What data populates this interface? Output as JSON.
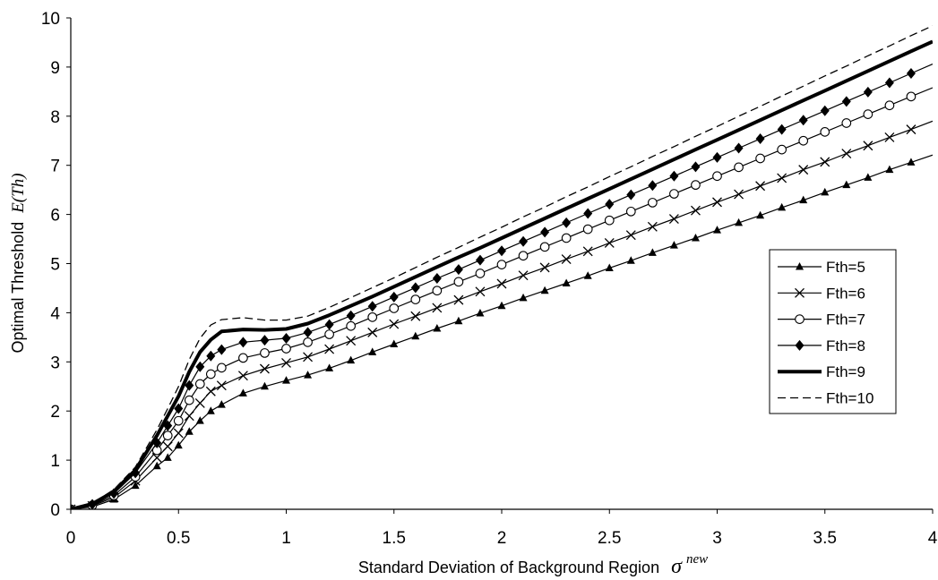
{
  "chart_data": {
    "type": "line",
    "title": "",
    "xlabel": "Standard Deviation of Background Region",
    "xlabel_symbol": "σ",
    "xlabel_superscript": "new",
    "ylabel": "Optimal Threshold",
    "ylabel_symbol": "E(Th)",
    "xlim": [
      0,
      4
    ],
    "ylim": [
      0,
      10
    ],
    "xticks": [
      "0",
      "0.5",
      "1",
      "1.5",
      "2",
      "2.5",
      "3",
      "3.5",
      "4"
    ],
    "yticks": [
      "0",
      "1",
      "2",
      "3",
      "4",
      "5",
      "6",
      "7",
      "8",
      "9",
      "10"
    ],
    "grid": false,
    "legend_position": "right",
    "x": [
      0,
      0.1,
      0.2,
      0.3,
      0.4,
      0.45,
      0.5,
      0.55,
      0.6,
      0.65,
      0.7,
      0.8,
      0.9,
      1.0,
      1.1,
      1.2,
      1.3,
      1.4,
      1.5,
      1.6,
      1.7,
      1.8,
      1.9,
      2.0,
      2.1,
      2.2,
      2.3,
      2.4,
      2.5,
      2.6,
      2.7,
      2.8,
      2.9,
      3.0,
      3.1,
      3.2,
      3.3,
      3.4,
      3.5,
      3.6,
      3.7,
      3.8,
      3.9,
      4.0
    ],
    "series": [
      {
        "name": "Fth=5",
        "marker": "triangle",
        "line": "thin",
        "values": [
          0,
          0.05,
          0.2,
          0.48,
          0.88,
          1.05,
          1.3,
          1.58,
          1.8,
          2.0,
          2.13,
          2.36,
          2.5,
          2.62,
          2.73,
          2.87,
          3.03,
          3.2,
          3.36,
          3.52,
          3.68,
          3.83,
          3.99,
          4.14,
          4.3,
          4.45,
          4.6,
          4.75,
          4.91,
          5.06,
          5.22,
          5.37,
          5.52,
          5.68,
          5.83,
          5.98,
          6.14,
          6.29,
          6.45,
          6.6,
          6.75,
          6.91,
          7.06,
          7.21
        ]
      },
      {
        "name": "Fth=6",
        "marker": "cross",
        "line": "thin",
        "values": [
          0,
          0.07,
          0.24,
          0.58,
          1.05,
          1.28,
          1.55,
          1.9,
          2.16,
          2.4,
          2.52,
          2.72,
          2.86,
          2.98,
          3.1,
          3.26,
          3.43,
          3.6,
          3.77,
          3.93,
          4.1,
          4.26,
          4.43,
          4.59,
          4.76,
          4.92,
          5.09,
          5.25,
          5.42,
          5.58,
          5.75,
          5.91,
          6.08,
          6.25,
          6.41,
          6.58,
          6.74,
          6.91,
          7.07,
          7.24,
          7.4,
          7.57,
          7.73,
          7.9
        ]
      },
      {
        "name": "Fth=7",
        "marker": "circle",
        "line": "thin",
        "values": [
          0,
          0.08,
          0.28,
          0.66,
          1.2,
          1.5,
          1.8,
          2.22,
          2.55,
          2.75,
          2.88,
          3.08,
          3.18,
          3.27,
          3.4,
          3.56,
          3.73,
          3.91,
          4.09,
          4.27,
          4.45,
          4.63,
          4.8,
          4.98,
          5.16,
          5.34,
          5.52,
          5.7,
          5.88,
          6.06,
          6.24,
          6.42,
          6.6,
          6.78,
          6.96,
          7.14,
          7.32,
          7.5,
          7.68,
          7.86,
          8.04,
          8.22,
          8.4,
          8.58
        ]
      },
      {
        "name": "Fth=8",
        "marker": "diamond",
        "line": "thin",
        "values": [
          0,
          0.1,
          0.32,
          0.74,
          1.35,
          1.7,
          2.05,
          2.52,
          2.9,
          3.12,
          3.25,
          3.4,
          3.44,
          3.48,
          3.6,
          3.76,
          3.94,
          4.13,
          4.32,
          4.51,
          4.7,
          4.88,
          5.07,
          5.26,
          5.45,
          5.64,
          5.83,
          6.02,
          6.21,
          6.4,
          6.59,
          6.78,
          6.97,
          7.16,
          7.35,
          7.54,
          7.73,
          7.92,
          8.11,
          8.3,
          8.49,
          8.68,
          8.87,
          9.06
        ]
      },
      {
        "name": "Fth=9",
        "marker": "none",
        "line": "thick",
        "values": [
          0,
          0.11,
          0.36,
          0.8,
          1.5,
          1.9,
          2.3,
          2.8,
          3.2,
          3.45,
          3.62,
          3.66,
          3.65,
          3.67,
          3.78,
          3.95,
          4.14,
          4.33,
          4.53,
          4.73,
          4.93,
          5.13,
          5.32,
          5.52,
          5.72,
          5.92,
          6.12,
          6.32,
          6.52,
          6.72,
          6.92,
          7.12,
          7.32,
          7.52,
          7.72,
          7.92,
          8.12,
          8.32,
          8.52,
          8.72,
          8.92,
          9.12,
          9.32,
          9.52
        ]
      },
      {
        "name": "Fth=10",
        "marker": "none",
        "line": "dashed",
        "values": [
          0,
          0.12,
          0.4,
          0.86,
          1.62,
          2.05,
          2.5,
          3.05,
          3.48,
          3.75,
          3.86,
          3.9,
          3.85,
          3.85,
          3.93,
          4.11,
          4.31,
          4.51,
          4.71,
          4.92,
          5.13,
          5.33,
          5.54,
          5.74,
          5.95,
          6.15,
          6.36,
          6.56,
          6.77,
          6.97,
          7.18,
          7.38,
          7.59,
          7.79,
          8.0,
          8.2,
          8.41,
          8.61,
          8.82,
          9.02,
          9.23,
          9.43,
          9.64,
          9.84
        ]
      }
    ]
  }
}
